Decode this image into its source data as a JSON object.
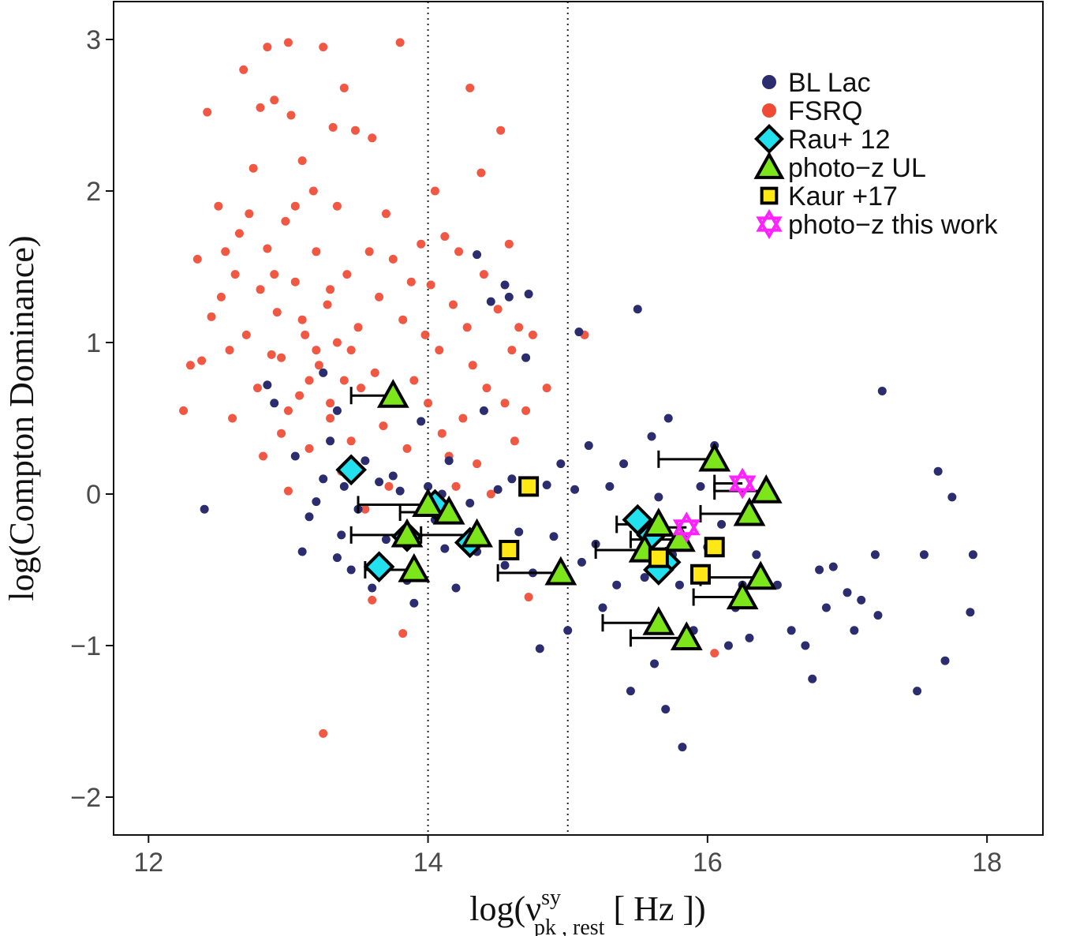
{
  "chart_data": {
    "type": "scatter",
    "xlabel": {
      "prefix": "log(",
      "nu": "ν",
      "sup": "sy",
      "sub": "pk , rest",
      "suffix": "  [ Hz ])"
    },
    "ylabel": "log(Compton Dominance)",
    "xlim": [
      11.75,
      18.4
    ],
    "ylim": [
      -2.25,
      3.25
    ],
    "xticks": [
      12,
      14,
      16,
      18
    ],
    "yticks": [
      -2,
      -1,
      0,
      1,
      2,
      3
    ],
    "yticklabels": [
      "−2",
      "−1",
      "0",
      "1",
      "2",
      "3"
    ],
    "vlines": [
      14,
      15
    ],
    "grid": false,
    "legend_position": "top-right",
    "colors": {
      "bllac": "#2b2d6e",
      "fsrq": "#ef4a34",
      "rau": "#22e0ee",
      "photoz_ul": "#7de61a",
      "kaur": "#ffe816",
      "this_work": "#ff22ff"
    },
    "series": [
      {
        "name": "BL Lac",
        "marker": "circle",
        "points": [
          [
            12.4,
            -0.1
          ],
          [
            12.85,
            0.72
          ],
          [
            12.9,
            0.6
          ],
          [
            13.05,
            0.25
          ],
          [
            13.1,
            -0.38
          ],
          [
            13.15,
            -0.15
          ],
          [
            13.2,
            -0.05
          ],
          [
            13.25,
            0.1
          ],
          [
            13.3,
            0.35
          ],
          [
            13.35,
            -0.42
          ],
          [
            13.38,
            -0.27
          ],
          [
            13.4,
            0.05
          ],
          [
            13.45,
            -0.5
          ],
          [
            13.5,
            -0.1
          ],
          [
            13.55,
            0.22
          ],
          [
            13.6,
            -0.62
          ],
          [
            13.65,
            0.08
          ],
          [
            13.7,
            -0.3
          ],
          [
            13.75,
            0.12
          ],
          [
            13.8,
            0.02
          ],
          [
            13.85,
            -0.57
          ],
          [
            13.9,
            -0.72
          ],
          [
            13.95,
            0.48
          ],
          [
            14.0,
            0.05
          ],
          [
            14.05,
            -0.17
          ],
          [
            14.1,
            0.0
          ],
          [
            14.12,
            -0.36
          ],
          [
            14.15,
            0.22
          ],
          [
            14.2,
            -0.62
          ],
          [
            14.3,
            -0.06
          ],
          [
            14.35,
            -0.38
          ],
          [
            14.4,
            0.55
          ],
          [
            14.45,
            1.27
          ],
          [
            14.5,
            0.03
          ],
          [
            14.55,
            -0.47
          ],
          [
            14.6,
            0.1
          ],
          [
            14.65,
            -0.25
          ],
          [
            14.7,
            0.9
          ],
          [
            14.72,
            1.32
          ],
          [
            14.75,
            -0.52
          ],
          [
            14.8,
            -1.02
          ],
          [
            14.85,
            0.06
          ],
          [
            14.9,
            -0.28
          ],
          [
            14.95,
            0.2
          ],
          [
            15.0,
            -0.9
          ],
          [
            15.05,
            0.03
          ],
          [
            15.08,
            1.07
          ],
          [
            15.1,
            -0.45
          ],
          [
            15.15,
            0.32
          ],
          [
            15.2,
            -0.33
          ],
          [
            15.25,
            -0.75
          ],
          [
            15.3,
            0.05
          ],
          [
            15.35,
            -0.6
          ],
          [
            15.4,
            0.2
          ],
          [
            15.45,
            -1.3
          ],
          [
            15.5,
            1.22
          ],
          [
            15.55,
            -0.55
          ],
          [
            15.6,
            0.38
          ],
          [
            15.62,
            -1.12
          ],
          [
            15.65,
            -0.02
          ],
          [
            15.7,
            -1.42
          ],
          [
            15.72,
            0.5
          ],
          [
            15.75,
            -0.4
          ],
          [
            15.8,
            -0.6
          ],
          [
            15.82,
            -1.67
          ],
          [
            15.85,
            -1.0
          ],
          [
            15.9,
            -0.9
          ],
          [
            15.95,
            0.05
          ],
          [
            16.0,
            -0.35
          ],
          [
            16.05,
            0.32
          ],
          [
            16.1,
            -0.2
          ],
          [
            16.15,
            -1.0
          ],
          [
            16.2,
            -0.75
          ],
          [
            16.25,
            -0.6
          ],
          [
            16.3,
            -0.95
          ],
          [
            16.35,
            -0.4
          ],
          [
            16.42,
            0.0
          ],
          [
            16.5,
            -0.6
          ],
          [
            16.6,
            -0.9
          ],
          [
            16.7,
            -1.0
          ],
          [
            16.75,
            -1.22
          ],
          [
            16.8,
            -0.5
          ],
          [
            16.85,
            -0.75
          ],
          [
            16.9,
            -0.48
          ],
          [
            17.0,
            -0.65
          ],
          [
            17.05,
            -0.9
          ],
          [
            17.1,
            -0.7
          ],
          [
            17.2,
            -0.4
          ],
          [
            17.22,
            -0.8
          ],
          [
            17.25,
            0.68
          ],
          [
            17.5,
            -1.3
          ],
          [
            17.55,
            -0.4
          ],
          [
            17.65,
            0.15
          ],
          [
            17.7,
            -1.1
          ],
          [
            17.75,
            -0.02
          ],
          [
            17.88,
            -0.78
          ],
          [
            17.9,
            -0.4
          ],
          [
            14.35,
            1.58
          ],
          [
            14.55,
            1.38
          ],
          [
            14.58,
            1.3
          ],
          [
            13.25,
            0.8
          ],
          [
            13.35,
            0.55
          ]
        ]
      },
      {
        "name": "FSRQ",
        "marker": "circle",
        "points": [
          [
            12.25,
            0.55
          ],
          [
            12.3,
            0.85
          ],
          [
            12.35,
            1.55
          ],
          [
            12.38,
            0.88
          ],
          [
            12.42,
            2.52
          ],
          [
            12.45,
            1.17
          ],
          [
            12.5,
            1.9
          ],
          [
            12.52,
            1.3
          ],
          [
            12.55,
            1.6
          ],
          [
            12.58,
            0.95
          ],
          [
            12.6,
            0.5
          ],
          [
            12.62,
            1.45
          ],
          [
            12.65,
            1.72
          ],
          [
            12.68,
            2.8
          ],
          [
            12.7,
            1.05
          ],
          [
            12.72,
            1.85
          ],
          [
            12.75,
            2.15
          ],
          [
            12.78,
            0.7
          ],
          [
            12.8,
            1.35
          ],
          [
            12.82,
            0.25
          ],
          [
            12.85,
            2.95
          ],
          [
            12.85,
            1.62
          ],
          [
            12.88,
            0.92
          ],
          [
            12.9,
            2.6
          ],
          [
            12.92,
            1.2
          ],
          [
            12.95,
            0.4
          ],
          [
            12.98,
            1.8
          ],
          [
            13.0,
            2.98
          ],
          [
            13.0,
            0.02
          ],
          [
            13.02,
            2.5
          ],
          [
            13.05,
            1.4
          ],
          [
            13.08,
            0.65
          ],
          [
            13.1,
            2.2
          ],
          [
            13.12,
            1.05
          ],
          [
            13.15,
            0.3
          ],
          [
            13.18,
            2.0
          ],
          [
            13.2,
            1.6
          ],
          [
            13.22,
            0.85
          ],
          [
            13.25,
            2.95
          ],
          [
            13.28,
            1.25
          ],
          [
            13.3,
            0.5
          ],
          [
            13.32,
            2.42
          ],
          [
            13.35,
            1.9
          ],
          [
            13.38,
            0.15
          ],
          [
            13.4,
            2.68
          ],
          [
            13.42,
            1.45
          ],
          [
            13.45,
            0.95
          ],
          [
            13.48,
            2.4
          ],
          [
            13.5,
            1.1
          ],
          [
            13.52,
            0.7
          ],
          [
            13.55,
            -0.1
          ],
          [
            13.58,
            1.6
          ],
          [
            13.6,
            2.35
          ],
          [
            13.62,
            0.8
          ],
          [
            13.65,
            1.3
          ],
          [
            13.68,
            0.45
          ],
          [
            13.7,
            1.85
          ],
          [
            13.72,
            0.05
          ],
          [
            13.75,
            1.55
          ],
          [
            13.8,
            2.98
          ],
          [
            13.82,
            1.15
          ],
          [
            13.85,
            0.3
          ],
          [
            13.88,
            1.4
          ],
          [
            13.9,
            0.75
          ],
          [
            13.92,
            -0.5
          ],
          [
            13.95,
            1.65
          ],
          [
            13.98,
            1.05
          ],
          [
            14.0,
            0.6
          ],
          [
            14.02,
            1.38
          ],
          [
            14.05,
            2.0
          ],
          [
            14.08,
            0.95
          ],
          [
            14.1,
            0.4
          ],
          [
            14.12,
            1.7
          ],
          [
            14.15,
            0.25
          ],
          [
            14.18,
            1.25
          ],
          [
            14.2,
            0.05
          ],
          [
            14.22,
            1.6
          ],
          [
            14.25,
            0.5
          ],
          [
            14.28,
            1.1
          ],
          [
            14.3,
            2.68
          ],
          [
            14.32,
            0.85
          ],
          [
            14.35,
            0.2
          ],
          [
            14.38,
            2.12
          ],
          [
            14.4,
            1.45
          ],
          [
            14.42,
            0.7
          ],
          [
            14.45,
            0.0
          ],
          [
            14.5,
            1.22
          ],
          [
            14.52,
            2.4
          ],
          [
            14.55,
            0.6
          ],
          [
            14.58,
            1.65
          ],
          [
            14.6,
            0.95
          ],
          [
            14.62,
            0.35
          ],
          [
            14.65,
            1.1
          ],
          [
            14.7,
            0.55
          ],
          [
            14.72,
            -0.68
          ],
          [
            14.75,
            1.05
          ],
          [
            14.85,
            0.7
          ],
          [
            15.12,
            1.05
          ],
          [
            16.05,
            -1.05
          ],
          [
            13.25,
            -1.58
          ],
          [
            13.6,
            -0.7
          ],
          [
            13.82,
            -0.92
          ],
          [
            13.3,
            0.6
          ],
          [
            13.2,
            0.95
          ],
          [
            13.1,
            1.15
          ],
          [
            12.95,
            0.9
          ],
          [
            13.4,
            0.75
          ],
          [
            13.45,
            0.35
          ],
          [
            13.0,
            0.55
          ],
          [
            12.9,
            1.45
          ],
          [
            13.15,
            0.75
          ],
          [
            13.3,
            1.35
          ],
          [
            13.35,
            1.0
          ],
          [
            13.05,
            1.9
          ],
          [
            12.8,
            2.55
          ]
        ]
      },
      {
        "name": "Rau+ 12",
        "marker": "diamond",
        "points": [
          [
            13.45,
            0.16
          ],
          [
            14.05,
            -0.07
          ],
          [
            13.85,
            -0.28
          ],
          [
            14.3,
            -0.32
          ],
          [
            13.65,
            -0.48
          ],
          [
            15.5,
            -0.17
          ],
          [
            15.6,
            -0.27
          ],
          [
            15.7,
            -0.45
          ],
          [
            15.65,
            -0.5
          ]
        ]
      },
      {
        "name": "photo−z UL",
        "marker": "triangle",
        "points": [
          {
            "x": 13.75,
            "y": 0.65,
            "xlow": 13.45
          },
          {
            "x": 14.0,
            "y": -0.07,
            "xlow": 13.5
          },
          {
            "x": 14.15,
            "y": -0.12,
            "xlow": 13.8
          },
          {
            "x": 13.85,
            "y": -0.27,
            "xlow": 13.45
          },
          {
            "x": 14.35,
            "y": -0.27,
            "xlow": 13.95
          },
          {
            "x": 13.9,
            "y": -0.5,
            "xlow": 13.55
          },
          {
            "x": 14.95,
            "y": -0.52,
            "xlow": 14.5
          },
          {
            "x": 16.05,
            "y": 0.23,
            "xlow": 15.65
          },
          {
            "x": 16.42,
            "y": 0.02,
            "xlow": 16.05
          },
          {
            "x": 16.3,
            "y": -0.13,
            "xlow": 15.95
          },
          {
            "x": 15.65,
            "y": -0.2,
            "xlow": 15.35
          },
          {
            "x": 15.55,
            "y": -0.37,
            "xlow": 15.2
          },
          {
            "x": 15.8,
            "y": -0.3,
            "xlow": 15.45
          },
          {
            "x": 16.38,
            "y": -0.55,
            "xlow": 15.95
          },
          {
            "x": 16.25,
            "y": -0.68,
            "xlow": 15.9
          },
          {
            "x": 15.65,
            "y": -0.85,
            "xlow": 15.25
          },
          {
            "x": 15.85,
            "y": -0.95,
            "xlow": 15.45
          }
        ]
      },
      {
        "name": "Kaur +17",
        "marker": "square",
        "points": [
          [
            14.72,
            0.05
          ],
          [
            14.58,
            -0.37
          ],
          [
            15.65,
            -0.42
          ],
          [
            15.95,
            -0.53
          ],
          [
            16.05,
            -0.35
          ]
        ]
      },
      {
        "name": "photo−z this work",
        "marker": "star6",
        "points": [
          {
            "x": 16.25,
            "y": 0.07,
            "xlow": 16.05
          },
          {
            "x": 15.85,
            "y": -0.22,
            "xlow": 15.6
          }
        ]
      }
    ]
  }
}
